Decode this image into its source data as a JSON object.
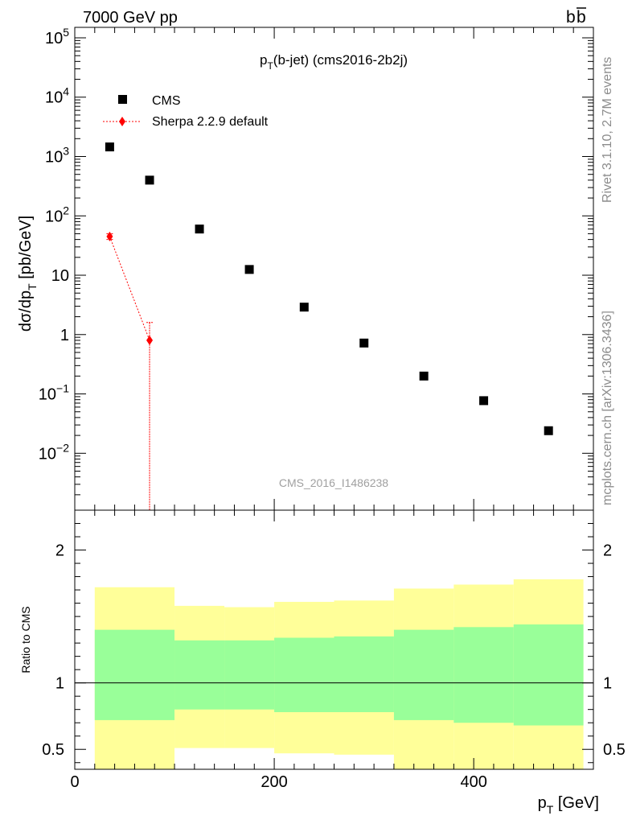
{
  "header": {
    "left": "7000 GeV pp",
    "right_b": "b",
    "right_bbar": "b"
  },
  "side_labels": {
    "rivet": "Rivet 3.1.10,  2.7M events",
    "mcplots": "mcplots.cern.ch [arXiv:1306.3436]"
  },
  "analysis_tag": "CMS_2016_I1486238",
  "chart_data": [
    {
      "type": "scatter",
      "title": {
        "main": "p",
        "sub": "T",
        "rest": "(b-jet) (cms2016-2b2j)"
      },
      "ylabel": {
        "a": "dσ/dp",
        "sub": "T",
        "b": " [pb/GeV]"
      },
      "yscale": "log",
      "xlim": [
        0,
        520
      ],
      "ylim": [
        0.0011,
        150000
      ],
      "y_ticks": [
        {
          "value": 0.01,
          "base": "10",
          "exp": "−2"
        },
        {
          "value": 0.1,
          "base": "10",
          "exp": "−1"
        },
        {
          "value": 1,
          "label": "1"
        },
        {
          "value": 10,
          "label": "10"
        },
        {
          "value": 100,
          "base": "10",
          "exp": "2"
        },
        {
          "value": 1000,
          "base": "10",
          "exp": "3"
        },
        {
          "value": 10000,
          "base": "10",
          "exp": "4"
        },
        {
          "value": 100000,
          "base": "10",
          "exp": "5"
        }
      ],
      "legend_position": "top-left",
      "series": [
        {
          "name": "CMS",
          "marker": "square",
          "color": "#000000",
          "x": [
            35,
            75,
            125,
            175,
            230,
            290,
            350,
            410,
            475
          ],
          "y": [
            1450,
            400,
            60,
            12.5,
            2.9,
            0.72,
            0.2,
            0.077,
            0.024
          ]
        },
        {
          "name": "Sherpa 2.2.9 default",
          "marker": "diamond",
          "line": "dotted",
          "color": "#ff0000",
          "x": [
            35,
            75
          ],
          "y": [
            45,
            0.8
          ],
          "yerr_low": [
            5,
            0.8
          ],
          "yerr_high": [
            5,
            0.8
          ]
        }
      ]
    },
    {
      "type": "area",
      "ylabel": "Ratio to CMS",
      "xlabel": {
        "a": "p",
        "sub": "T",
        "b": " [GeV]"
      },
      "xlim": [
        0,
        520
      ],
      "ylim": [
        0.35,
        2.3
      ],
      "x_ticks": [
        0,
        200,
        400
      ],
      "y_ticks": [
        0.5,
        1,
        2
      ],
      "reference_line": 1,
      "bins": [
        20,
        100,
        150,
        200,
        260,
        320,
        380,
        440,
        510
      ],
      "bands": [
        {
          "color": "#ffff99",
          "low": [
            0.34,
            0.51,
            0.51,
            0.47,
            0.46,
            0.34,
            0.34,
            0.34
          ],
          "high": [
            1.72,
            1.58,
            1.57,
            1.61,
            1.62,
            1.71,
            1.74,
            1.78
          ]
        },
        {
          "color": "#99ff99",
          "low": [
            0.72,
            0.8,
            0.8,
            0.78,
            0.78,
            0.72,
            0.7,
            0.68
          ],
          "high": [
            1.4,
            1.32,
            1.32,
            1.34,
            1.35,
            1.4,
            1.42,
            1.44
          ]
        }
      ]
    }
  ]
}
